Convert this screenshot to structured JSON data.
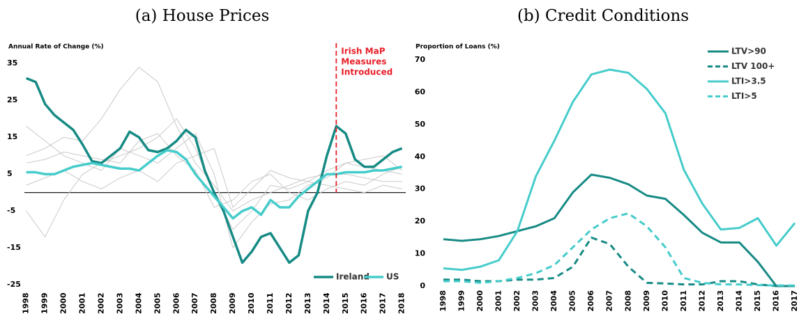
{
  "chart_data": [
    {
      "type": "line",
      "title": "(a) House Prices",
      "y_label": "Annual Rate of Change (%)",
      "x": [
        1998,
        1998.5,
        1999,
        1999.5,
        2000,
        2000.5,
        2001,
        2001.5,
        2002,
        2002.5,
        2003,
        2003.5,
        2004,
        2004.5,
        2005,
        2005.5,
        2006,
        2006.5,
        2007,
        2007.5,
        2008,
        2008.5,
        2009,
        2009.5,
        2010,
        2010.5,
        2011,
        2011.5,
        2012,
        2012.5,
        2013,
        2013.5,
        2014,
        2014.5,
        2015,
        2015.5,
        2016,
        2016.5,
        2017,
        2017.5,
        2018
      ],
      "xlim": [
        1997.9,
        2018.2
      ],
      "xticks": [
        1998,
        1999,
        2000,
        2001,
        2002,
        2003,
        2004,
        2005,
        2006,
        2007,
        2008,
        2009,
        2010,
        2011,
        2012,
        2013,
        2014,
        2015,
        2016,
        2017,
        2018
      ],
      "ylim": [
        -26,
        39
      ],
      "yticks": [
        35,
        25,
        15,
        5,
        -5,
        -15,
        -25
      ],
      "legend": "lower right",
      "hline": {
        "value": 0,
        "color": "#000000"
      },
      "annotation": {
        "text": [
          "Irish MaP",
          "Measures",
          "Introduced"
        ],
        "x": 2014.5,
        "color": "#e8202a"
      },
      "series": [
        {
          "color": "#c9c9c9",
          "x": [
            1998,
            1999,
            2000,
            2001,
            2002,
            2003,
            2004,
            2005,
            2006,
            2007,
            2008,
            2009,
            2010,
            2011,
            2012,
            2013,
            2014,
            2015,
            2016,
            2017,
            2018
          ],
          "values": [
            10,
            12,
            15,
            14,
            20,
            28,
            34,
            30,
            18,
            8,
            2,
            -5,
            -2,
            0,
            2,
            4,
            5,
            5,
            4,
            3,
            3
          ]
        },
        {
          "color": "#c9c9c9",
          "x": [
            1998,
            1999,
            2000,
            2001,
            2002,
            2003,
            2004,
            2005,
            2006,
            2007,
            2008,
            2009,
            2010,
            2011,
            2012,
            2013,
            2014,
            2015,
            2016,
            2017,
            2018
          ],
          "values": [
            -5,
            -12,
            -2,
            5,
            8,
            10,
            12,
            15,
            20,
            12,
            0,
            -10,
            -5,
            2,
            1,
            3,
            6,
            8,
            7,
            6,
            5
          ]
        },
        {
          "color": "#c9c9c9",
          "x": [
            1998,
            1999,
            2000,
            2001,
            2002,
            2003,
            2004,
            2005,
            2006,
            2007,
            2008,
            2009,
            2010,
            2011,
            2012,
            2013,
            2014,
            2015,
            2016,
            2017,
            2018
          ],
          "values": [
            18,
            14,
            10,
            8,
            6,
            12,
            10,
            8,
            12,
            16,
            5,
            -15,
            -8,
            -3,
            -2,
            2,
            4,
            8,
            9,
            10,
            6
          ]
        },
        {
          "color": "#c9c9c9",
          "x": [
            1998,
            1999,
            2000,
            2001,
            2002,
            2003,
            2004,
            2005,
            2006,
            2007,
            2008,
            2009,
            2010,
            2011,
            2012,
            2013,
            2014,
            2015,
            2016,
            2017,
            2018
          ],
          "values": [
            8,
            9,
            11,
            10,
            9,
            8,
            14,
            16,
            10,
            6,
            -4,
            -2,
            3,
            5,
            0,
            -2,
            1,
            3,
            2,
            5,
            7
          ]
        },
        {
          "color": "#c9c9c9",
          "x": [
            1998,
            1999,
            2000,
            2001,
            2002,
            2003,
            2004,
            2005,
            2006,
            2007,
            2008,
            2009,
            2010,
            2011,
            2012,
            2013,
            2014,
            2015,
            2016,
            2017,
            2018
          ],
          "values": [
            2,
            4,
            6,
            3,
            1,
            4,
            6,
            3,
            8,
            10,
            12,
            -4,
            1,
            6,
            4,
            3,
            2,
            1,
            0,
            2,
            1
          ]
        },
        {
          "name": "Ireland",
          "color": "#168a84",
          "values": [
            31,
            30,
            24,
            21,
            19,
            17,
            13,
            8.5,
            8,
            10,
            12,
            16.5,
            15,
            11.5,
            11,
            12,
            14,
            17,
            15,
            6,
            0,
            -5,
            -12,
            -19,
            -16,
            -12,
            -11,
            -15,
            -19,
            -17,
            -5,
            0,
            10,
            18,
            16,
            9,
            7,
            7,
            9,
            11,
            12
          ]
        },
        {
          "name": "US",
          "color": "#45cccb",
          "values": [
            5.5,
            5.5,
            5,
            5,
            6,
            7,
            7.5,
            8,
            7.5,
            7,
            6.5,
            6.5,
            6,
            8,
            10,
            11.5,
            11,
            9,
            5,
            2,
            -1,
            -4,
            -7,
            -5,
            -4,
            -6,
            -2,
            -4,
            -4,
            -1,
            1,
            3,
            5,
            5,
            5.5,
            5.5,
            5.5,
            6,
            6,
            6.5,
            7
          ]
        }
      ]
    },
    {
      "type": "line",
      "title": "(b) Credit Conditions",
      "y_label": "Proportion of Loans (%)",
      "x": [
        1998,
        1999,
        2000,
        2001,
        2002,
        2003,
        2004,
        2005,
        2006,
        2007,
        2008,
        2009,
        2010,
        2011,
        2012,
        2013,
        2014,
        2015,
        2016,
        2017
      ],
      "xlim": [
        1997.9,
        2017.1
      ],
      "xticks": [
        1998,
        1999,
        2000,
        2001,
        2002,
        2003,
        2004,
        2005,
        2006,
        2007,
        2008,
        2009,
        2010,
        2011,
        2012,
        2013,
        2014,
        2015,
        2016,
        2017
      ],
      "ylim": [
        0,
        71
      ],
      "yticks": [
        0,
        10,
        20,
        30,
        40,
        50,
        60,
        70
      ],
      "legend": "upper right",
      "series": [
        {
          "name": "LTV>90",
          "color": "#168a84",
          "dashed": false,
          "values": [
            14.5,
            14,
            14.5,
            15.5,
            17,
            18.5,
            21,
            29,
            34.5,
            33.5,
            31.5,
            28,
            27,
            22,
            16.5,
            13.5,
            13.5,
            7.5,
            0,
            0
          ]
        },
        {
          "name": "LTV 100+",
          "color": "#168a84",
          "dashed": true,
          "values": [
            2,
            2,
            1.5,
            1.5,
            2,
            2,
            2.5,
            6,
            15,
            13,
            6,
            1,
            0.8,
            0.5,
            0.5,
            1.5,
            1.5,
            0.5,
            0,
            0
          ]
        },
        {
          "name": "LTI>3.5",
          "color": "#45cccb",
          "dashed": false,
          "values": [
            5.5,
            5,
            6,
            8,
            17,
            34,
            45,
            57,
            65.5,
            67,
            66,
            61,
            53.5,
            36,
            25.5,
            17.5,
            18,
            21,
            12.5,
            19.5
          ]
        },
        {
          "name": "LTI>5",
          "color": "#45cccb",
          "dashed": true,
          "values": [
            1.5,
            1.5,
            1,
            1.5,
            2.5,
            4,
            6.5,
            12,
            17.5,
            21,
            22.5,
            18.5,
            12,
            2.5,
            1,
            0.5,
            0.5,
            0.3,
            0.2,
            0.2
          ]
        }
      ]
    }
  ]
}
